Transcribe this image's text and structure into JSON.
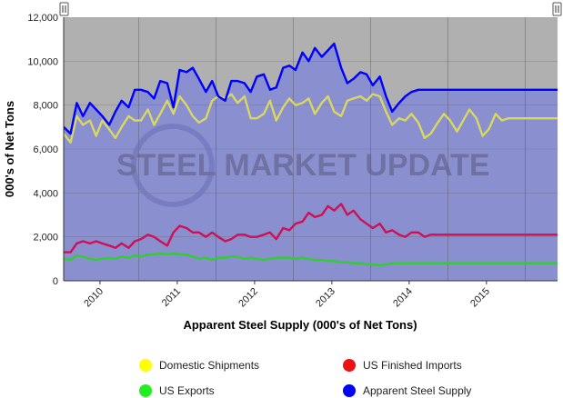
{
  "chart_data": {
    "type": "area",
    "xlabel": "Apparent Steel Supply (000's of Net Tons)",
    "ylabel": "000's of Net Tons",
    "ylim": [
      0,
      12000
    ],
    "yticks": [
      0,
      2000,
      4000,
      6000,
      8000,
      10000,
      12000
    ],
    "ytick_labels": [
      "0",
      "2,000",
      "4,000",
      "6,000",
      "8,000",
      "10,000",
      "12,000"
    ],
    "xlim": [
      2009.53,
      2015.92
    ],
    "xtick_labels": [
      "2010",
      "2011",
      "2012",
      "2013",
      "2014",
      "2015"
    ],
    "xtick_positions": [
      2010.0,
      2011.0,
      2012.0,
      2013.0,
      2014.0,
      2015.0
    ],
    "grid": true,
    "legend_position": "bottom",
    "watermark": "STEEL MARKET UPDATE",
    "background_color": "#b0b0b0",
    "area_color": "#8a8fd0",
    "x": [
      2009.53,
      2009.62,
      2009.7,
      2009.78,
      2009.87,
      2009.95,
      2010.03,
      2010.12,
      2010.2,
      2010.28,
      2010.37,
      2010.45,
      2010.53,
      2010.62,
      2010.7,
      2010.78,
      2010.87,
      2010.95,
      2011.03,
      2011.12,
      2011.2,
      2011.28,
      2011.37,
      2011.45,
      2011.53,
      2011.62,
      2011.7,
      2011.78,
      2011.87,
      2011.95,
      2012.03,
      2012.12,
      2012.2,
      2012.28,
      2012.37,
      2012.45,
      2012.53,
      2012.62,
      2012.7,
      2012.78,
      2012.87,
      2012.95,
      2013.03,
      2013.12,
      2013.2,
      2013.28,
      2013.37,
      2013.45,
      2013.53,
      2013.62,
      2013.7,
      2013.78,
      2013.87,
      2013.95,
      2014.03,
      2014.12,
      2014.2,
      2014.28,
      2014.37,
      2014.45,
      2014.53,
      2014.62,
      2014.7,
      2014.78,
      2014.87,
      2014.95,
      2015.03,
      2015.12,
      2015.2,
      2015.28,
      2015.37,
      2015.45,
      2015.53,
      2015.62,
      2015.7,
      2015.78,
      2015.87,
      2015.92
    ],
    "series": [
      {
        "name": "Domestic Shipments",
        "color": "#d8d860",
        "values": [
          6700,
          6300,
          7500,
          7100,
          7300,
          6600,
          7300,
          6900,
          6500,
          7000,
          7500,
          7300,
          7300,
          7800,
          7100,
          7600,
          8200,
          7600,
          8400,
          8000,
          7500,
          7200,
          7400,
          8200,
          8400,
          8300,
          8500,
          8100,
          8400,
          7400,
          7400,
          7600,
          8200,
          7300,
          7900,
          8300,
          8000,
          8100,
          8300,
          7600,
          8100,
          8400,
          7700,
          7500,
          8200,
          8300,
          8400,
          8200,
          8500,
          8400,
          7700,
          7100,
          7400,
          7300,
          7600,
          7200,
          6500,
          6700,
          7200,
          7600,
          7300,
          6800,
          7300,
          7800,
          7400,
          6600,
          6900,
          7600,
          7300,
          7400,
          7400,
          7400,
          7400,
          7400,
          7400,
          7400,
          7400,
          7400
        ]
      },
      {
        "name": "US Finished Imports",
        "color": "#cc1155",
        "values": [
          1300,
          1300,
          1700,
          1800,
          1700,
          1800,
          1700,
          1600,
          1500,
          1700,
          1500,
          1800,
          1900,
          2100,
          2000,
          1800,
          1600,
          2200,
          2500,
          2400,
          2200,
          2200,
          2000,
          2200,
          2000,
          1800,
          1900,
          2100,
          2100,
          2000,
          2000,
          2100,
          2200,
          1900,
          2400,
          2300,
          2600,
          2700,
          3100,
          2900,
          3000,
          3400,
          3200,
          3500,
          3000,
          3200,
          2800,
          2600,
          2400,
          2600,
          2200,
          2300,
          2100,
          2000,
          2200,
          2200,
          2000,
          2100,
          2100,
          2100,
          2100,
          2100,
          2100,
          2100,
          2100,
          2100,
          2100,
          2100,
          2100,
          2100,
          2100,
          2100,
          2100,
          2100,
          2100,
          2100,
          2100,
          2100
        ]
      },
      {
        "name": "US Exports",
        "color": "#33cc33",
        "values": [
          1000,
          950,
          1150,
          1100,
          1000,
          950,
          1000,
          1050,
          1000,
          1100,
          1050,
          1150,
          1100,
          1200,
          1200,
          1250,
          1200,
          1250,
          1200,
          1200,
          1100,
          1000,
          1050,
          950,
          1050,
          1050,
          1100,
          1100,
          1000,
          1050,
          1000,
          950,
          1000,
          1050,
          1050,
          1050,
          1000,
          1050,
          1000,
          950,
          950,
          900,
          900,
          850,
          850,
          800,
          800,
          750,
          750,
          700,
          750,
          800,
          800,
          800,
          800,
          800,
          800,
          800,
          800,
          800,
          800,
          800,
          800,
          800,
          800,
          800,
          800,
          800,
          800,
          800,
          800,
          800,
          800,
          800,
          800,
          800,
          800,
          800
        ]
      },
      {
        "name": "Apparent Steel Supply",
        "color": "#0000ff",
        "values": [
          7000,
          6700,
          8100,
          7500,
          8100,
          7800,
          7500,
          7100,
          7700,
          8200,
          7900,
          8700,
          8700,
          8600,
          8300,
          9100,
          9000,
          7900,
          9600,
          9500,
          9700,
          9200,
          8600,
          9100,
          8400,
          8200,
          9100,
          9100,
          9000,
          8600,
          9300,
          9400,
          8700,
          8800,
          9700,
          9800,
          9600,
          10400,
          10000,
          10600,
          10200,
          10500,
          10800,
          9700,
          9000,
          9200,
          9500,
          9400,
          8900,
          9300,
          8400,
          7700,
          8100,
          8400,
          8600,
          8700,
          8700,
          8700,
          8700,
          8700,
          8700,
          8700,
          8700,
          8700,
          8700,
          8700,
          8700,
          8700,
          8700,
          8700,
          8700,
          8700,
          8700,
          8700,
          8700,
          8700,
          8700,
          8700
        ]
      }
    ]
  },
  "legend": {
    "items": [
      {
        "label": "Domestic Shipments",
        "color": "#ffff00"
      },
      {
        "label": "US Finished Imports",
        "color": "#ee1111"
      },
      {
        "label": "US Exports",
        "color": "#22ee22"
      },
      {
        "label": "Apparent Steel Supply",
        "color": "#0000ff"
      }
    ]
  },
  "controls": {
    "left_handle_icon": "pause-bars-icon",
    "right_handle_icon": "pause-bars-icon"
  }
}
